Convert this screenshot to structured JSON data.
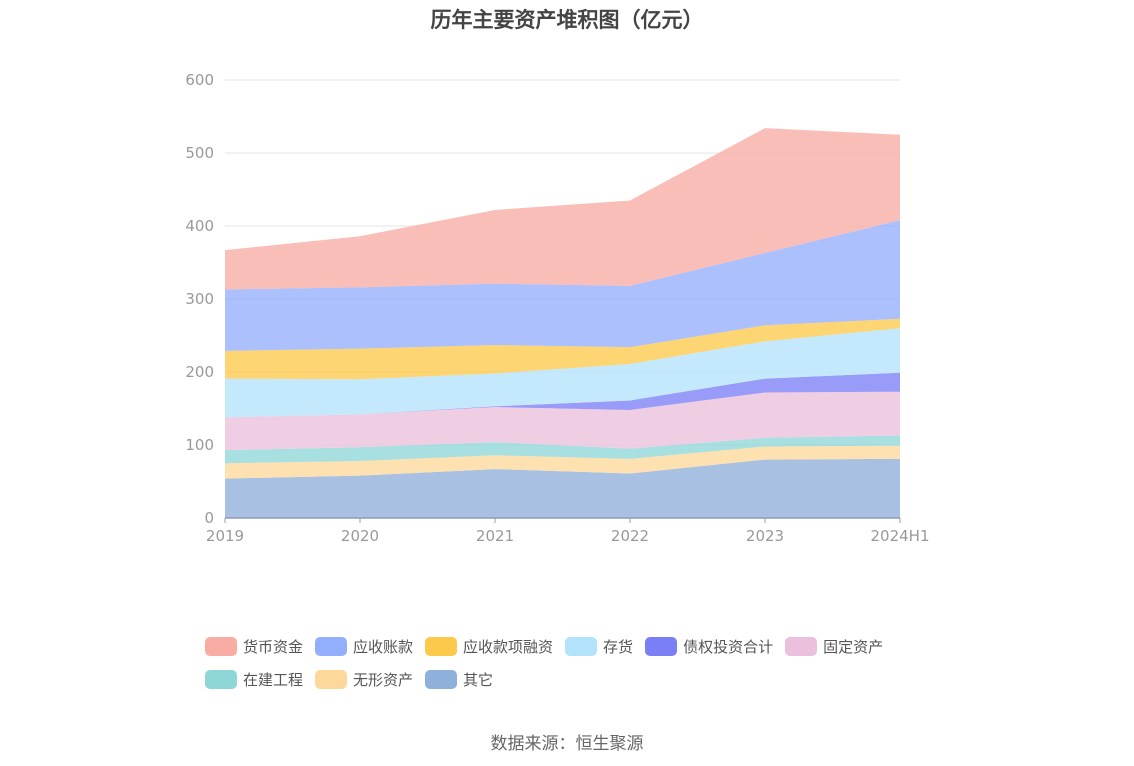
{
  "chart_data": {
    "type": "area",
    "stacked": true,
    "title": "历年主要资产堆积图（亿元）",
    "categories": [
      "2019",
      "2020",
      "2021",
      "2022",
      "2023",
      "2024H1"
    ],
    "y_ticks": [
      "0",
      "100",
      "200",
      "300",
      "400",
      "500",
      "600"
    ],
    "ylim": [
      0,
      600
    ],
    "grid": "horizontal",
    "legend_position": "bottom",
    "series": [
      {
        "name": "其它",
        "color": "#8fb0da",
        "values": [
          54,
          58,
          67,
          61,
          80,
          81
        ]
      },
      {
        "name": "无形资产",
        "color": "#fdd89a",
        "values": [
          21,
          20,
          19,
          20,
          18,
          18
        ]
      },
      {
        "name": "在建工程",
        "color": "#8fd6d8",
        "values": [
          18,
          19,
          18,
          14,
          12,
          14
        ]
      },
      {
        "name": "固定资产",
        "color": "#eac0dd",
        "values": [
          45,
          45,
          48,
          53,
          62,
          60
        ]
      },
      {
        "name": "债权投资合计",
        "color": "#7b7ff5",
        "values": [
          0,
          0,
          1,
          13,
          19,
          26
        ]
      },
      {
        "name": "存货",
        "color": "#b3e3fb",
        "values": [
          53,
          48,
          45,
          50,
          51,
          61
        ]
      },
      {
        "name": "应收款项融资",
        "color": "#fdc94a",
        "values": [
          38,
          42,
          39,
          23,
          22,
          13
        ]
      },
      {
        "name": "应收账款",
        "color": "#93aefc",
        "values": [
          84,
          84,
          84,
          84,
          99,
          135
        ]
      },
      {
        "name": "货币资金",
        "color": "#f9aca4",
        "values": [
          54,
          70,
          101,
          117,
          171,
          117
        ]
      }
    ]
  },
  "legend": {
    "rows": [
      [
        {
          "label": "货币资金",
          "color": "#f9aca4"
        },
        {
          "label": "应收账款",
          "color": "#93aefc"
        },
        {
          "label": "应收款项融资",
          "color": "#fdc94a"
        },
        {
          "label": "存货",
          "color": "#b3e3fb"
        },
        {
          "label": "债权投资合计",
          "color": "#7b7ff5"
        },
        {
          "label": "固定资产",
          "color": "#eac0dd"
        }
      ],
      [
        {
          "label": "在建工程",
          "color": "#8fd6d8"
        },
        {
          "label": "无形资产",
          "color": "#fdd89a"
        },
        {
          "label": "其它",
          "color": "#8fb0da"
        }
      ]
    ]
  },
  "source": "数据来源：恒生聚源"
}
